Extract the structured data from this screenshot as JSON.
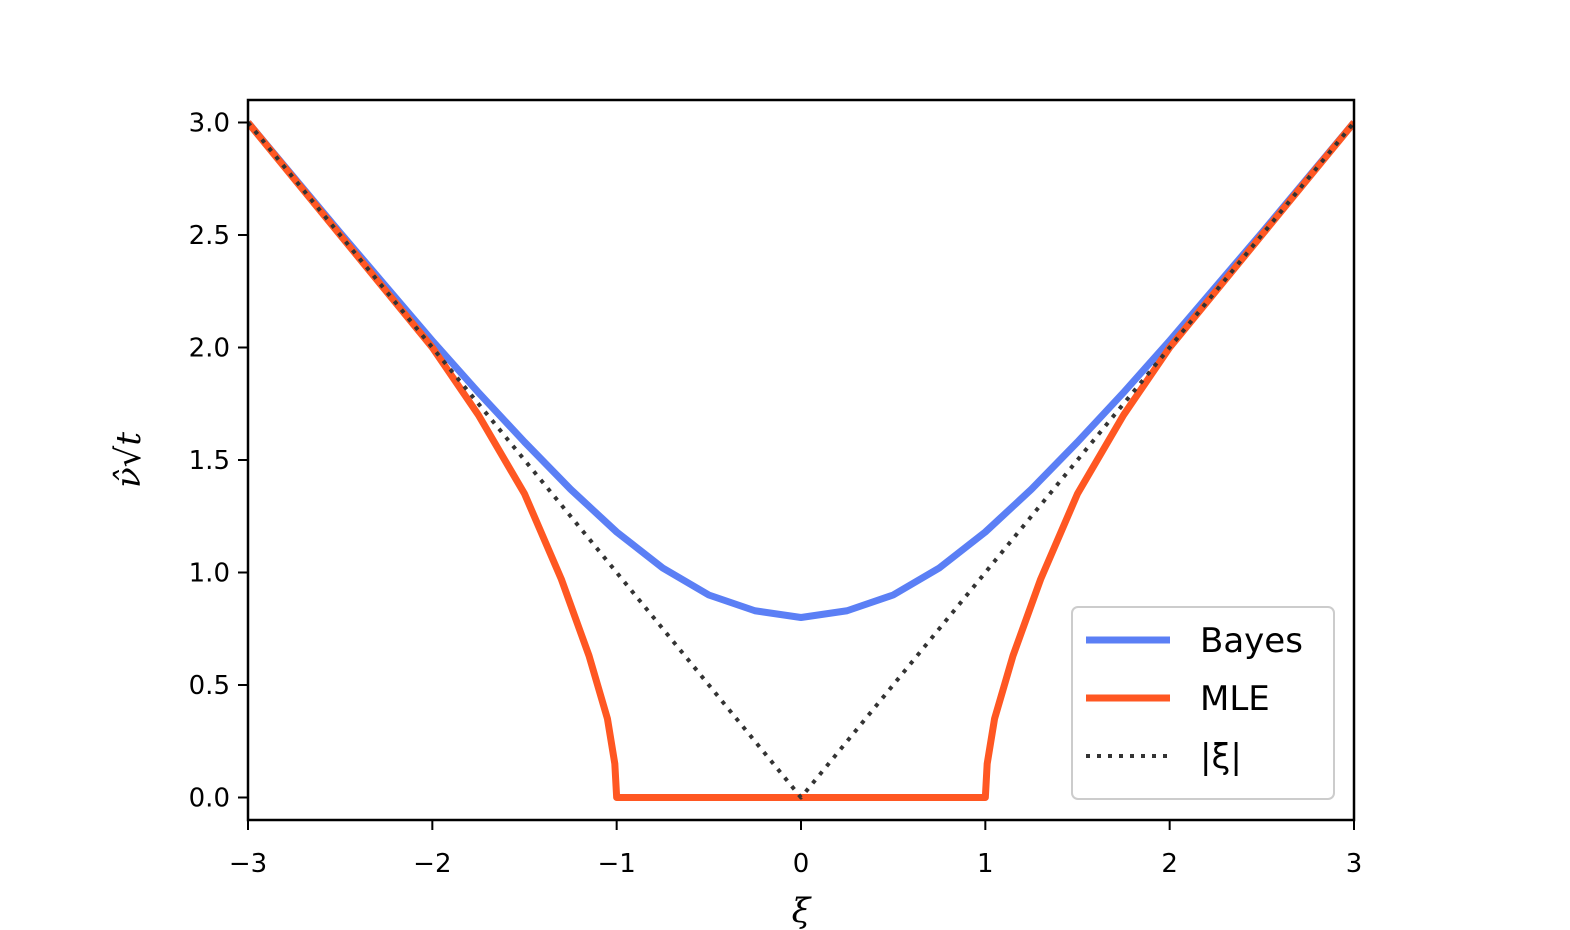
{
  "chart_data": {
    "type": "line",
    "title": "",
    "xlabel": "ξ",
    "ylabel": "ν̂√t",
    "xlim": [
      -3,
      3
    ],
    "ylim": [
      -0.1,
      3.1
    ],
    "xticks": [
      -3,
      -2,
      -1,
      0,
      1,
      2,
      3
    ],
    "xtick_labels": [
      "−3",
      "−2",
      "−1",
      "0",
      "1",
      "2",
      "3"
    ],
    "yticks": [
      0.0,
      0.5,
      1.0,
      1.5,
      2.0,
      2.5,
      3.0
    ],
    "ytick_labels": [
      "0.0",
      "0.5",
      "1.0",
      "1.5",
      "2.0",
      "2.5",
      "3.0"
    ],
    "grid": false,
    "legend_position": "lower-right",
    "series": [
      {
        "name": "Bayes",
        "color": "#5b7ff5",
        "style": "solid",
        "x": [
          -3.0,
          -2.5,
          -2.0,
          -1.75,
          -1.5,
          -1.25,
          -1.0,
          -0.75,
          -0.5,
          -0.25,
          0.0,
          0.25,
          0.5,
          0.75,
          1.0,
          1.25,
          1.5,
          1.75,
          2.0,
          2.5,
          3.0
        ],
        "y": [
          3.0,
          2.51,
          2.03,
          1.8,
          1.58,
          1.37,
          1.18,
          1.02,
          0.9,
          0.83,
          0.8,
          0.83,
          0.9,
          1.02,
          1.18,
          1.37,
          1.58,
          1.8,
          2.03,
          2.51,
          3.0
        ]
      },
      {
        "name": "MLE",
        "color": "#ff5722",
        "style": "solid",
        "x": [
          -3.0,
          -2.5,
          -2.0,
          -1.75,
          -1.5,
          -1.3,
          -1.15,
          -1.05,
          -1.01,
          -1.0,
          0.0,
          1.0,
          1.01,
          1.05,
          1.15,
          1.3,
          1.5,
          1.75,
          2.0,
          2.5,
          3.0
        ],
        "y": [
          3.0,
          2.5,
          2.0,
          1.7,
          1.35,
          0.97,
          0.63,
          0.35,
          0.15,
          0.0,
          0.0,
          0.0,
          0.15,
          0.35,
          0.63,
          0.97,
          1.35,
          1.7,
          2.0,
          2.5,
          3.0
        ]
      },
      {
        "name": "|ξ|",
        "color": "#333333",
        "style": "dotted",
        "x": [
          -3,
          0,
          3
        ],
        "y": [
          3,
          0,
          3
        ]
      }
    ]
  }
}
